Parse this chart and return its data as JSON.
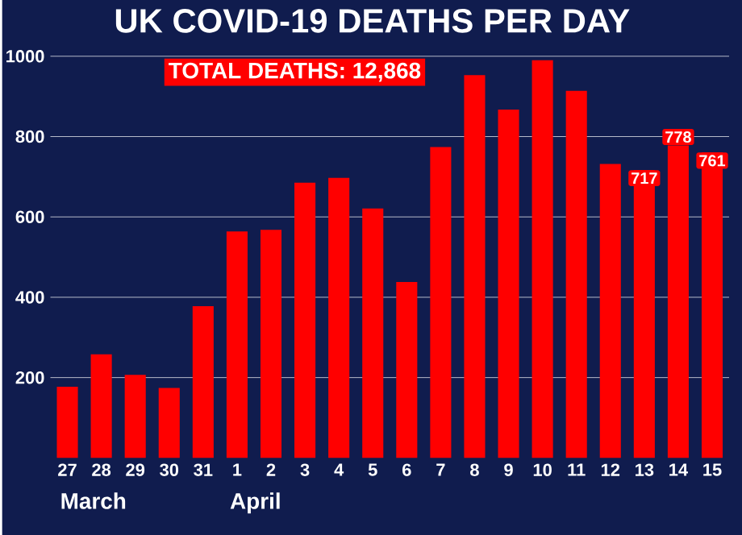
{
  "chart_data": {
    "type": "bar",
    "title": "UK COVID-19 DEATHS PER DAY",
    "categories": [
      "27",
      "28",
      "29",
      "30",
      "31",
      "1",
      "2",
      "3",
      "4",
      "5",
      "6",
      "7",
      "8",
      "9",
      "10",
      "11",
      "12",
      "13",
      "14",
      "15"
    ],
    "values": [
      177,
      258,
      207,
      174,
      378,
      564,
      568,
      685,
      697,
      621,
      438,
      774,
      953,
      867,
      990,
      914,
      732,
      717,
      778,
      761
    ],
    "value_labels": [
      null,
      null,
      null,
      null,
      null,
      null,
      null,
      null,
      null,
      null,
      null,
      null,
      null,
      null,
      null,
      null,
      null,
      "717",
      "778",
      "761"
    ],
    "color": "#ff0000",
    "ylim": [
      0,
      1000
    ],
    "yticks": [
      200,
      400,
      600,
      800,
      1000
    ],
    "grid": "y",
    "annotations": [
      "TOTAL DEATHS: 12,868",
      "March",
      "April"
    ]
  }
}
